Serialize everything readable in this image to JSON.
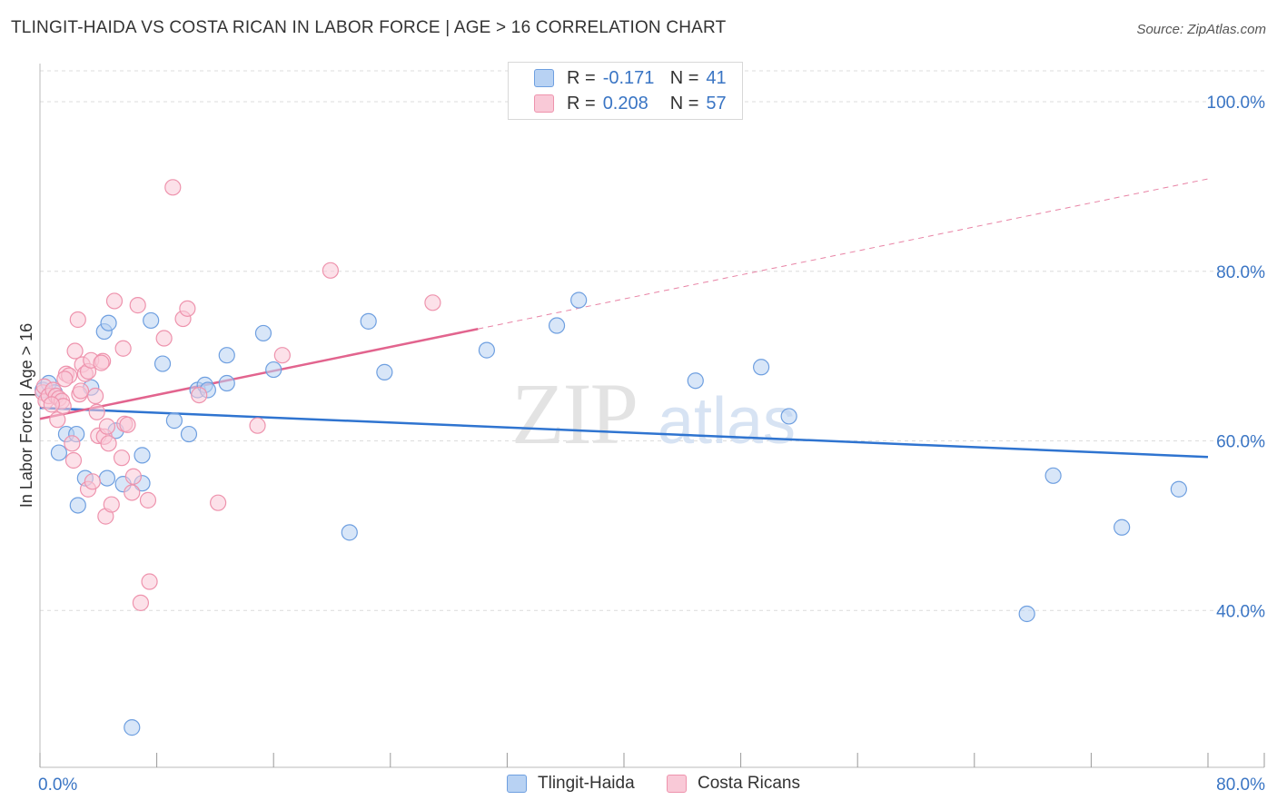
{
  "title": "TLINGIT-HAIDA VS COSTA RICAN IN LABOR FORCE | AGE > 16 CORRELATION CHART",
  "source": "Source: ZipAtlas.com",
  "watermark": {
    "zip": "ZIP",
    "atlas": "atlas"
  },
  "legend": {
    "r_label": "R =",
    "n_label": "N =",
    "rows": [
      {
        "r": "-0.171",
        "n": "41"
      },
      {
        "r": "0.208",
        "n": "57"
      }
    ]
  },
  "chart_data": {
    "type": "scatter",
    "title": "TLINGIT-HAIDA VS COSTA RICAN IN LABOR FORCE | AGE > 16 CORRELATION CHART",
    "xlabel": "",
    "ylabel": "In Labor Force | Age > 16",
    "xlim": [
      0,
      80
    ],
    "ylim": [
      21.5,
      104.5
    ],
    "x_tick_labels": [
      "0.0%",
      "80.0%"
    ],
    "y_ticks": [
      40,
      60,
      80,
      100
    ],
    "y_tick_labels": [
      "40.0%",
      "60.0%",
      "80.0%",
      "100.0%"
    ],
    "grid": true,
    "legend_position": "top-center",
    "series": [
      {
        "name": "Tlingit-Haida",
        "color": "#6e9fe0",
        "fill": "#b8d2f3",
        "line_color": "#2f74d0",
        "r": -0.171,
        "n": 41,
        "trend": {
          "x0": 0,
          "y0": 63.9,
          "x1": 80,
          "y1": 58.1
        },
        "points": [
          [
            0.2,
            66.0
          ],
          [
            0.6,
            66.8
          ],
          [
            1.3,
            58.6
          ],
          [
            1.8,
            60.8
          ],
          [
            2.5,
            60.8
          ],
          [
            2.6,
            52.4
          ],
          [
            3.1,
            55.6
          ],
          [
            4.4,
            72.9
          ],
          [
            4.6,
            55.6
          ],
          [
            4.7,
            73.9
          ],
          [
            5.2,
            61.2
          ],
          [
            5.7,
            54.9
          ],
          [
            6.3,
            26.2
          ],
          [
            7.0,
            58.3
          ],
          [
            7.6,
            74.2
          ],
          [
            8.4,
            69.1
          ],
          [
            9.2,
            62.4
          ],
          [
            10.2,
            60.8
          ],
          [
            10.8,
            66.0
          ],
          [
            11.3,
            66.6
          ],
          [
            12.8,
            70.1
          ],
          [
            12.8,
            66.8
          ],
          [
            15.3,
            72.7
          ],
          [
            16.0,
            68.4
          ],
          [
            21.2,
            49.2
          ],
          [
            22.5,
            74.1
          ],
          [
            23.6,
            68.1
          ],
          [
            30.6,
            70.7
          ],
          [
            35.4,
            73.6
          ],
          [
            36.9,
            76.6
          ],
          [
            44.9,
            67.1
          ],
          [
            49.4,
            68.7
          ],
          [
            51.3,
            62.9
          ],
          [
            67.6,
            39.6
          ],
          [
            69.4,
            55.9
          ],
          [
            74.1,
            49.8
          ],
          [
            78.0,
            54.3
          ],
          [
            1.0,
            65.7
          ],
          [
            3.5,
            66.3
          ],
          [
            7.0,
            55.0
          ],
          [
            11.5,
            66.0
          ]
        ]
      },
      {
        "name": "Costa Ricans",
        "color": "#ee93ad",
        "fill": "#f9c9d7",
        "line_color": "#e2648e",
        "r": 0.208,
        "n": 57,
        "trend": {
          "x0": 0,
          "y0": 62.6,
          "x1": 30,
          "y1": 73.2
        },
        "trend_dashed": {
          "x0": 30,
          "y0": 73.2,
          "x1": 80,
          "y1": 90.9
        },
        "points": [
          [
            0.2,
            65.7
          ],
          [
            0.3,
            66.4
          ],
          [
            0.4,
            64.7
          ],
          [
            0.6,
            65.3
          ],
          [
            0.9,
            66.0
          ],
          [
            1.1,
            65.3
          ],
          [
            1.2,
            62.5
          ],
          [
            1.3,
            65.0
          ],
          [
            1.5,
            64.7
          ],
          [
            1.6,
            64.1
          ],
          [
            1.8,
            67.9
          ],
          [
            2.0,
            67.7
          ],
          [
            2.2,
            59.7
          ],
          [
            2.3,
            57.7
          ],
          [
            2.4,
            70.6
          ],
          [
            2.6,
            74.3
          ],
          [
            2.7,
            65.5
          ],
          [
            2.9,
            69.0
          ],
          [
            3.1,
            67.9
          ],
          [
            3.3,
            68.2
          ],
          [
            3.3,
            54.3
          ],
          [
            3.5,
            69.5
          ],
          [
            3.6,
            55.2
          ],
          [
            3.8,
            65.3
          ],
          [
            3.9,
            63.4
          ],
          [
            4.0,
            60.6
          ],
          [
            4.3,
            69.4
          ],
          [
            4.4,
            60.5
          ],
          [
            4.5,
            51.1
          ],
          [
            4.6,
            61.7
          ],
          [
            4.7,
            59.7
          ],
          [
            4.9,
            52.5
          ],
          [
            5.1,
            76.5
          ],
          [
            5.6,
            58.0
          ],
          [
            5.7,
            70.9
          ],
          [
            5.8,
            62.0
          ],
          [
            6.3,
            53.9
          ],
          [
            6.4,
            55.8
          ],
          [
            6.7,
            76.0
          ],
          [
            6.9,
            40.9
          ],
          [
            7.4,
            53.0
          ],
          [
            7.5,
            43.4
          ],
          [
            9.1,
            89.9
          ],
          [
            9.8,
            74.4
          ],
          [
            10.1,
            75.6
          ],
          [
            10.9,
            65.4
          ],
          [
            12.2,
            52.7
          ],
          [
            14.9,
            61.8
          ],
          [
            16.6,
            70.1
          ],
          [
            19.9,
            80.1
          ],
          [
            26.9,
            76.3
          ],
          [
            1.7,
            67.3
          ],
          [
            4.2,
            69.2
          ],
          [
            8.5,
            72.1
          ],
          [
            0.8,
            64.3
          ],
          [
            2.8,
            65.9
          ],
          [
            6.0,
            61.9
          ]
        ]
      }
    ]
  },
  "bottom_legend": [
    "Tlingit-Haida",
    "Costa Ricans"
  ]
}
